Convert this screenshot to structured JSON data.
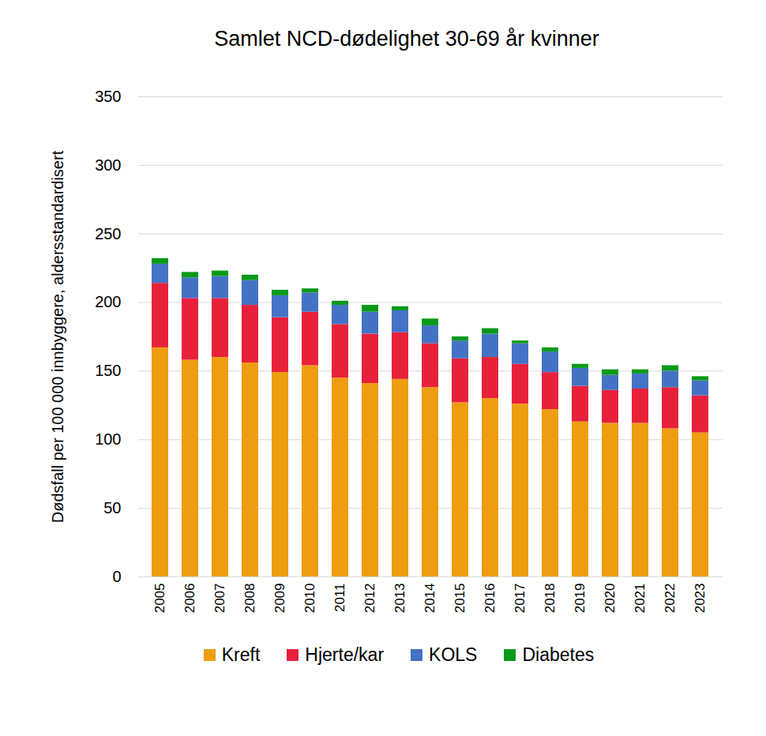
{
  "chart_data": {
    "type": "bar",
    "stacked": true,
    "title": "Samlet NCD-dødelighet 30-69 år kvinner",
    "y_label": "Dødsfall per 100 000 innbyggere, aldersstandardisert",
    "categories": [
      "2005",
      "2006",
      "2007",
      "2008",
      "2009",
      "2010",
      "2011",
      "2012",
      "2013",
      "2014",
      "2015",
      "2016",
      "2017",
      "2018",
      "2019",
      "2020",
      "2021",
      "2022",
      "2023"
    ],
    "series": [
      {
        "name": "Kreft",
        "color": "#ED9D0F",
        "values": [
          167,
          158,
          160,
          156,
          149,
          154,
          145,
          141,
          144,
          138,
          127,
          130,
          126,
          122,
          113,
          112,
          112,
          108,
          105
        ]
      },
      {
        "name": "Hjerte/kar",
        "color": "#E8213B",
        "values": [
          47,
          45,
          43,
          42,
          40,
          39,
          39,
          36,
          34,
          32,
          32,
          30,
          29,
          27,
          26,
          24,
          25,
          30,
          27
        ]
      },
      {
        "name": "KOLS",
        "color": "#4472C4",
        "values": [
          14,
          15,
          16,
          18,
          16,
          14,
          14,
          16,
          16,
          13,
          13,
          17,
          15,
          15,
          13,
          11,
          11,
          12,
          11
        ]
      },
      {
        "name": "Diabetes",
        "color": "#0A9A1A",
        "values": [
          4,
          4,
          4,
          4,
          4,
          3,
          3,
          5,
          3,
          5,
          3,
          4,
          2,
          3,
          3,
          4,
          3,
          4,
          3
        ]
      }
    ],
    "ylim": [
      0,
      350
    ],
    "yticks": [
      0,
      50,
      100,
      150,
      200,
      250,
      300,
      350
    ],
    "grid": true,
    "legend": "bottom"
  }
}
